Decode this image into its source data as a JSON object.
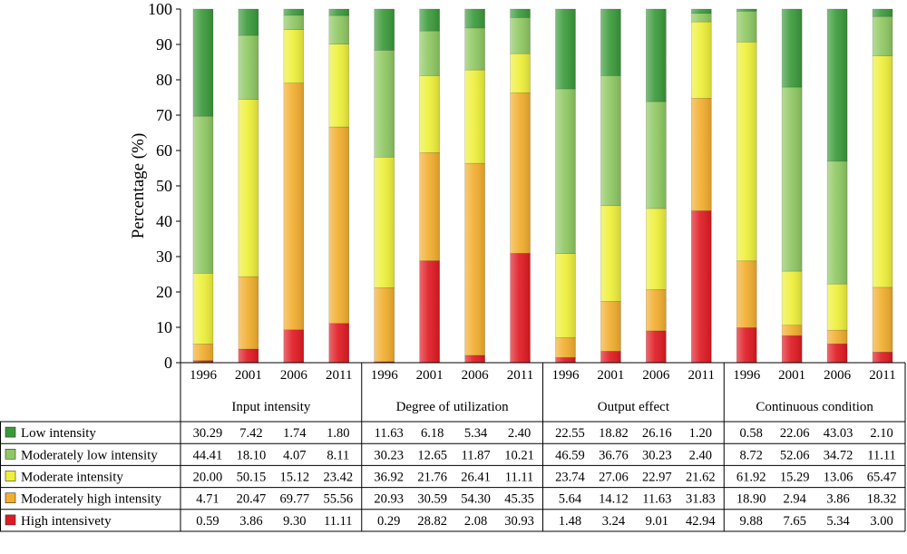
{
  "chart_data": {
    "type": "bar",
    "stacked": true,
    "ylabel": "Percentage (%)",
    "ylim": [
      0,
      100
    ],
    "yticks": [
      0,
      10,
      20,
      30,
      40,
      50,
      60,
      70,
      80,
      90,
      100
    ],
    "groups": [
      {
        "name": "Input intensity",
        "years": [
          "1996",
          "2001",
          "2006",
          "2011"
        ]
      },
      {
        "name": "Degree of utilization",
        "years": [
          "1996",
          "2001",
          "2006",
          "2011"
        ]
      },
      {
        "name": "Output effect",
        "years": [
          "1996",
          "2001",
          "2006",
          "2011"
        ]
      },
      {
        "name": "Continuous condition",
        "years": [
          "1996",
          "2001",
          "2006",
          "2011"
        ]
      }
    ],
    "series": [
      {
        "name": "Low intensity",
        "color": "#3a9a3a",
        "values": [
          "30.29",
          "7.42",
          "1.74",
          "1.80",
          "11.63",
          "6.18",
          "5.34",
          "2.40",
          "22.55",
          "18.82",
          "26.16",
          "1.20",
          "0.58",
          "22.06",
          "43.03",
          "2.10"
        ]
      },
      {
        "name": "Moderately low intensity",
        "color": "#8fc862",
        "values": [
          "44.41",
          "18.10",
          "4.07",
          "8.11",
          "30.23",
          "12.65",
          "11.87",
          "10.21",
          "46.59",
          "36.76",
          "30.23",
          "2.40",
          "8.72",
          "52.06",
          "34.72",
          "11.11"
        ]
      },
      {
        "name": "Moderate intensity",
        "color": "#eef03a",
        "values": [
          "20.00",
          "50.15",
          "15.12",
          "23.42",
          "36.92",
          "21.76",
          "26.41",
          "11.11",
          "23.74",
          "27.06",
          "22.97",
          "21.62",
          "61.92",
          "15.29",
          "13.06",
          "65.47"
        ]
      },
      {
        "name": "Moderately high intensity",
        "color": "#f2ae2e",
        "values": [
          "4.71",
          "20.47",
          "69.77",
          "55.56",
          "20.93",
          "30.59",
          "54.30",
          "45.35",
          "5.64",
          "14.12",
          "11.63",
          "31.83",
          "18.90",
          "2.94",
          "3.86",
          "18.32"
        ]
      },
      {
        "name": "High intensivety",
        "color": "#e01a22",
        "values": [
          "0.59",
          "3.86",
          "9.30",
          "11.11",
          "0.29",
          "28.82",
          "2.08",
          "30.93",
          "1.48",
          "3.24",
          "9.01",
          "42.94",
          "9.88",
          "7.65",
          "5.34",
          "3.00"
        ]
      }
    ]
  }
}
